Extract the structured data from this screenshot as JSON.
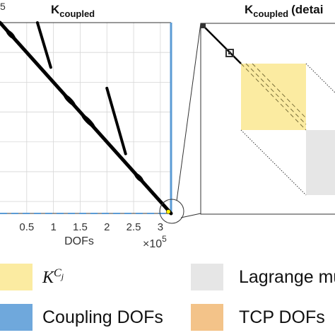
{
  "chart_data": [
    {
      "type": "scatter",
      "panel": "global-sparsity",
      "title_main": "K",
      "title_sub": "coupled",
      "xlabel": "DOFs",
      "x_tick_labels": [
        "0.5",
        "1",
        "1.5",
        "2",
        "2.5",
        "3"
      ],
      "x_tick_values": [
        0.5,
        1.0,
        1.5,
        2.0,
        2.5,
        3.0
      ],
      "x_multiplier": "×10",
      "x_multiplier_exp": "5",
      "y_multiplier_exp": "5",
      "xlim": [
        0.0,
        3.2
      ],
      "ylim": [
        3.2,
        0.0
      ],
      "grid": true,
      "series": [
        {
          "values": [
            [
              0.0,
              0.0
            ],
            [
              3.2,
              3.2
            ]
          ]
        },
        {
          "values": [
            [
              0.7,
              0.0
            ],
            [
              0.95,
              0.75
            ]
          ]
        },
        {
          "values": [
            [
              2.0,
              1.1
            ],
            [
              2.35,
              2.2
            ]
          ]
        }
      ],
      "highlight_point": [
        3.15,
        3.17
      ]
    },
    {
      "type": "scatter",
      "panel": "detail-sparsity",
      "title_main": "K",
      "title_sub": "coupled",
      "title_suffix": "(detai"
    }
  ],
  "legend": {
    "items": [
      {
        "label": "K^{C_j}",
        "label_main": "K",
        "label_sup": "C",
        "label_sub": "j",
        "color": "#fbeba1"
      },
      {
        "label": "Lagrange mul",
        "color": "#e6e6e6"
      },
      {
        "label": "Coupling DOFs",
        "color": "#6fa8dc"
      },
      {
        "label": "TCP DOFs",
        "color": "#f3c389"
      }
    ]
  },
  "colors": {
    "sparsity": "#000000",
    "axis_right": "#5b9bd5",
    "grid": "#d6d6d6",
    "highlight": "#ffee00"
  }
}
